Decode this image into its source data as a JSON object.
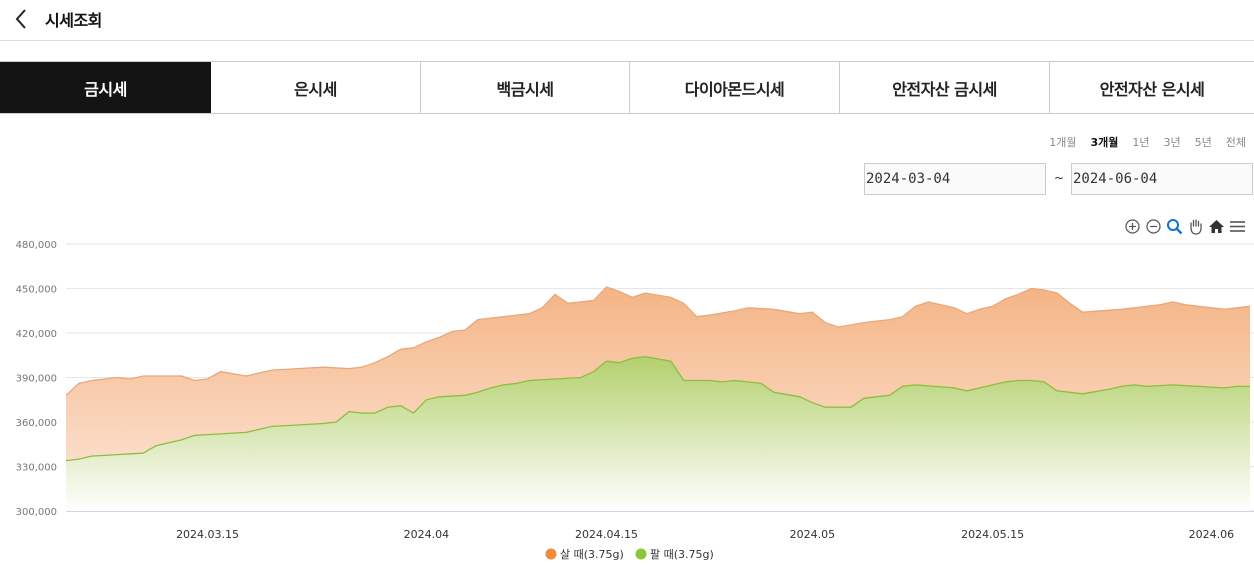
{
  "header": {
    "title": "시세조회"
  },
  "tabs": [
    {
      "label": "금시세",
      "active": true
    },
    {
      "label": "은시세",
      "active": false
    },
    {
      "label": "백금시세",
      "active": false
    },
    {
      "label": "다이아몬드시세",
      "active": false
    },
    {
      "label": "안전자산 금시세",
      "active": false
    },
    {
      "label": "안전자산 은시세",
      "active": false
    }
  ],
  "periods": [
    {
      "label": "1개월",
      "selected": false
    },
    {
      "label": "3개월",
      "selected": true
    },
    {
      "label": "1년",
      "selected": false
    },
    {
      "label": "3년",
      "selected": false
    },
    {
      "label": "5년",
      "selected": false
    },
    {
      "label": "전체",
      "selected": false
    }
  ],
  "date_range": {
    "start": "2024-03-04",
    "separator": "~",
    "end": "2024-06-04"
  },
  "toolbar_icons": [
    "zoom-in-icon",
    "zoom-out-icon",
    "magnify-icon",
    "pan-hand-icon",
    "home-icon",
    "menu-icon"
  ],
  "colors": {
    "buy": "#f08a3c",
    "sell": "#8cc43a",
    "active_tab": "#141414"
  },
  "chart_data": {
    "type": "area",
    "x_tick_labels": [
      "2024.03.15",
      "2024.04",
      "2024.04.15",
      "2024.05",
      "2024.05.15",
      "2024.06"
    ],
    "x_tick_days": [
      11,
      28,
      42,
      58,
      72,
      89
    ],
    "x_range_days": [
      0,
      92
    ],
    "ylim": [
      300000,
      480000
    ],
    "y_ticks": [
      300000,
      330000,
      360000,
      390000,
      420000,
      450000,
      480000
    ],
    "y_tick_labels": [
      "300,000",
      "330,000",
      "360,000",
      "390,000",
      "420,000",
      "450,000",
      "480,000"
    ],
    "legend_position": "bottom-center",
    "series": [
      {
        "name": "살 때(3.75g)",
        "color": "#f08a3c",
        "points": [
          [
            0,
            378000
          ],
          [
            1,
            386000
          ],
          [
            2,
            388000
          ],
          [
            4,
            390000
          ],
          [
            5,
            389000
          ],
          [
            6,
            391000
          ],
          [
            9,
            391000
          ],
          [
            10,
            388000
          ],
          [
            11,
            389000
          ],
          [
            12,
            394000
          ],
          [
            14,
            391000
          ],
          [
            16,
            395000
          ],
          [
            18,
            396000
          ],
          [
            20,
            397000
          ],
          [
            22,
            396000
          ],
          [
            23,
            397000
          ],
          [
            24,
            400000
          ],
          [
            25,
            404000
          ],
          [
            26,
            409000
          ],
          [
            27,
            410000
          ],
          [
            28,
            414000
          ],
          [
            29,
            417000
          ],
          [
            30,
            421000
          ],
          [
            31,
            422000
          ],
          [
            32,
            429000
          ],
          [
            34,
            431000
          ],
          [
            36,
            433000
          ],
          [
            37,
            437000
          ],
          [
            38,
            446000
          ],
          [
            39,
            440000
          ],
          [
            41,
            442000
          ],
          [
            42,
            451000
          ],
          [
            43,
            448000
          ],
          [
            44,
            444000
          ],
          [
            45,
            447000
          ],
          [
            47,
            444000
          ],
          [
            48,
            440000
          ],
          [
            49,
            431000
          ],
          [
            50,
            432000
          ],
          [
            52,
            435000
          ],
          [
            53,
            437000
          ],
          [
            55,
            436000
          ],
          [
            57,
            433000
          ],
          [
            58,
            434000
          ],
          [
            59,
            427000
          ],
          [
            60,
            424000
          ],
          [
            62,
            427000
          ],
          [
            64,
            429000
          ],
          [
            65,
            431000
          ],
          [
            66,
            438000
          ],
          [
            67,
            441000
          ],
          [
            69,
            437000
          ],
          [
            70,
            433000
          ],
          [
            71,
            436000
          ],
          [
            72,
            438000
          ],
          [
            73,
            443000
          ],
          [
            74,
            446000
          ],
          [
            75,
            450000
          ],
          [
            76,
            449000
          ],
          [
            77,
            447000
          ],
          [
            78,
            440000
          ],
          [
            79,
            434000
          ],
          [
            82,
            436000
          ],
          [
            83,
            437000
          ],
          [
            85,
            439000
          ],
          [
            86,
            441000
          ],
          [
            87,
            439000
          ],
          [
            88,
            438000
          ],
          [
            89,
            437000
          ],
          [
            90,
            436000
          ],
          [
            91,
            437000
          ],
          [
            92,
            438000
          ]
        ]
      },
      {
        "name": "팔 때(3.75g)",
        "color": "#8cc43a",
        "points": [
          [
            0,
            334000
          ],
          [
            1,
            335000
          ],
          [
            2,
            337000
          ],
          [
            4,
            338000
          ],
          [
            6,
            339000
          ],
          [
            7,
            344000
          ],
          [
            8,
            346000
          ],
          [
            9,
            348000
          ],
          [
            10,
            351000
          ],
          [
            12,
            352000
          ],
          [
            14,
            353000
          ],
          [
            16,
            357000
          ],
          [
            18,
            358000
          ],
          [
            20,
            359000
          ],
          [
            21,
            360000
          ],
          [
            22,
            367000
          ],
          [
            23,
            366000
          ],
          [
            24,
            366000
          ],
          [
            25,
            370000
          ],
          [
            26,
            371000
          ],
          [
            27,
            366000
          ],
          [
            28,
            375000
          ],
          [
            29,
            377000
          ],
          [
            31,
            378000
          ],
          [
            32,
            380000
          ],
          [
            33,
            383000
          ],
          [
            34,
            385000
          ],
          [
            35,
            386000
          ],
          [
            36,
            388000
          ],
          [
            38,
            389000
          ],
          [
            40,
            390000
          ],
          [
            41,
            394000
          ],
          [
            42,
            401000
          ],
          [
            43,
            400000
          ],
          [
            44,
            403000
          ],
          [
            45,
            404000
          ],
          [
            47,
            401000
          ],
          [
            48,
            388000
          ],
          [
            50,
            388000
          ],
          [
            51,
            387000
          ],
          [
            52,
            388000
          ],
          [
            54,
            386000
          ],
          [
            55,
            380000
          ],
          [
            57,
            377000
          ],
          [
            58,
            373000
          ],
          [
            59,
            370000
          ],
          [
            61,
            370000
          ],
          [
            62,
            376000
          ],
          [
            63,
            377000
          ],
          [
            64,
            378000
          ],
          [
            65,
            384000
          ],
          [
            66,
            385000
          ],
          [
            69,
            383000
          ],
          [
            70,
            381000
          ],
          [
            71,
            383000
          ],
          [
            72,
            385000
          ],
          [
            73,
            387000
          ],
          [
            74,
            388000
          ],
          [
            75,
            388000
          ],
          [
            76,
            387000
          ],
          [
            77,
            381000
          ],
          [
            78,
            380000
          ],
          [
            79,
            379000
          ],
          [
            81,
            382000
          ],
          [
            82,
            384000
          ],
          [
            83,
            385000
          ],
          [
            84,
            384000
          ],
          [
            86,
            385000
          ],
          [
            88,
            384000
          ],
          [
            90,
            383000
          ],
          [
            91,
            384000
          ],
          [
            92,
            384000
          ]
        ]
      }
    ]
  }
}
